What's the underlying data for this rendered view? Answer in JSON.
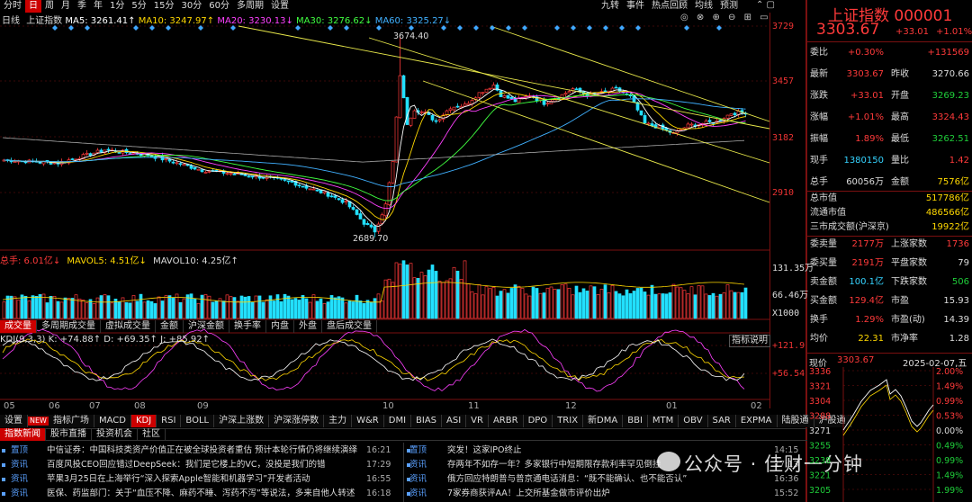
{
  "top_toolbar": {
    "items": [
      "分时",
      "日",
      "周",
      "月",
      "季",
      "年",
      "1分",
      "5分",
      "15分",
      "30分",
      "60分",
      "多周期",
      "设置"
    ],
    "selected": "日",
    "right_items": [
      "九转",
      "事件",
      "热点回顾",
      "均线",
      "预测"
    ]
  },
  "ma_bar": {
    "label": "日线",
    "index_name": "上证指数",
    "ma5": "MA5: 3261.41↑",
    "ma10": "MA10: 3247.97↑",
    "ma20": "MA20: 3230.13↓",
    "ma30": "MA30: 3276.62↓",
    "ma60": "MA60: 3325.27↓"
  },
  "colors": {
    "ma5": "#ffffff",
    "ma10": "#ffd800",
    "ma20": "#ff40ff",
    "ma30": "#40ff40",
    "ma60": "#40b0ff",
    "up": "#ff3a3a",
    "down": "#22e0ff",
    "trend": "#e8e84a"
  },
  "price_axis": [
    "3729",
    "3457",
    "3182",
    "2910"
  ],
  "price_annotations": {
    "high": "3674.40",
    "low": "2689.70"
  },
  "volume": {
    "header_total": "总手: 6.01亿↓",
    "mavol5": "MAVOL5: 4.51亿↓",
    "mavol10": "MAVOL10: 4.25亿↑",
    "axis_top": "131.35万",
    "axis_mid": "66.46万",
    "axis_unit": "X1000"
  },
  "mid_tabs": [
    "成交量",
    "多周期成交量",
    "虚拟成交量",
    "金额",
    "沪深金额",
    "换手率",
    "内盘",
    "外盘",
    "盘后成交量"
  ],
  "kdj": {
    "header": "KDJ(9,3,3) K: +74.88↑ D: +69.35↑ J: +85.92↑",
    "explain": "指标说明",
    "axis_top": "+121.9",
    "axis_mid": "+56.54"
  },
  "x_axis": [
    "05",
    "06",
    "07",
    "08",
    "09",
    "10",
    "11",
    "12",
    "01",
    "02"
  ],
  "indicator_tabs": [
    "设置",
    "指标广场",
    "MACD",
    "KDJ",
    "RSI",
    "BOLL",
    "沪深上涨数",
    "沪深涨停数",
    "主力",
    "W&R",
    "DMI",
    "BIAS",
    "ASI",
    "VR",
    "ARBR",
    "DPO",
    "TRIX",
    "新DMA",
    "BBI",
    "MTM",
    "OBV",
    "SAR",
    "EXPMA",
    "陆股通",
    "沪股通"
  ],
  "indicator_selected": "KDJ",
  "news_tabs": [
    "指数新闻",
    "股市直播",
    "投资机会",
    "社区"
  ],
  "news_left": [
    {
      "tag": "置顶",
      "text": "中信证券：中国科技类资产价值正在被全球投资者重估 预计本轮行情仍将继续演绎",
      "time": "16:21"
    },
    {
      "tag": "资讯",
      "text": "百度风投CEO回应错过DeepSeek：我们是它楼上的VC，没投是我们的错",
      "time": "17:29"
    },
    {
      "tag": "资讯",
      "text": "苹果3月25日在上海举行“深入探索Apple智能和机器学习”开发者活动",
      "time": "16:55"
    },
    {
      "tag": "资讯",
      "text": "医保、药监部门：关于“血压不降、麻药不睡、泻药不泻”等说法，多来自他人转述",
      "time": "16:18"
    }
  ],
  "news_right": [
    {
      "tag": "置顶",
      "text": "突发！这家IPO终止",
      "time": "14:15"
    },
    {
      "tag": "资讯",
      "text": "存两年不如存一年？多家银行中短期限存款利率罕见倒挂",
      "time": "17:13"
    },
    {
      "tag": "资讯",
      "text": "俄方回应特朗普与普京通电话消息：“既不能确认、也不能否认”",
      "time": "16:36"
    },
    {
      "tag": "资讯",
      "text": "7家券商获评AA！上交所基金做市评价出炉",
      "time": "15:52"
    }
  ],
  "watermark": "公众号 · 佳财一分钟",
  "quote": {
    "title": "上证指数 000001",
    "price": "3303.67",
    "change": "+33.01",
    "pct": "+1.01%",
    "rows": [
      {
        "l": "委比",
        "v": "+0.30%",
        "l2": "",
        "v2": "+131569",
        "c": "red",
        "c2": "red"
      },
      {
        "l": "最新",
        "v": "3303.67",
        "l2": "昨收",
        "v2": "3270.66",
        "c": "red",
        "c2": "wht"
      },
      {
        "l": "涨跌",
        "v": "+33.01",
        "l2": "开盘",
        "v2": "3269.23",
        "c": "red",
        "c2": "grn"
      },
      {
        "l": "涨幅",
        "v": "+1.01%",
        "l2": "最高",
        "v2": "3324.43",
        "c": "red",
        "c2": "red"
      },
      {
        "l": "振幅",
        "v": "1.89%",
        "l2": "最低",
        "v2": "3262.51",
        "c": "red",
        "c2": "grn"
      },
      {
        "l": "现手",
        "v": "1380150",
        "l2": "量比",
        "v2": "1.42",
        "c": "cy",
        "c2": "red"
      },
      {
        "l": "总手",
        "v": "60056万",
        "l2": "金额",
        "v2": "7576亿",
        "c": "wht",
        "c2": "yel"
      }
    ],
    "market": [
      {
        "l": "总市值",
        "v": "517786亿"
      },
      {
        "l": "流通市值",
        "v": "486566亿"
      },
      {
        "l": "三市成交额(沪深京)",
        "v": "19922亿"
      }
    ],
    "breadth": [
      {
        "l": "委卖量",
        "v": "2177万",
        "l2": "上涨家数",
        "v2": "1736",
        "c": "red",
        "c2": "red"
      },
      {
        "l": "委买量",
        "v": "2191万",
        "l2": "平盘家数",
        "v2": "79",
        "c": "red",
        "c2": "wht"
      },
      {
        "l": "卖金额",
        "v": "100.1亿",
        "l2": "下跌家数",
        "v2": "506",
        "c": "cy",
        "c2": "grn"
      },
      {
        "l": "买金额",
        "v": "129.4亿",
        "l2": "市盈",
        "v2": "15.93",
        "c": "red",
        "c2": "wht"
      },
      {
        "l": "换手",
        "v": "1.29%",
        "l2": "市盈(动)",
        "v2": "14.39",
        "c": "red",
        "c2": "wht"
      },
      {
        "l": "均价",
        "v": "22.31",
        "l2": "市净率",
        "v2": "1.28",
        "c": "yel",
        "c2": "wht"
      }
    ],
    "mini": {
      "label": "现价",
      "price": "3303.67",
      "date": "2025-02-07,五",
      "left_axis": [
        "3336",
        "3321",
        "3304",
        "3288",
        "3271",
        "3255",
        "3238",
        "3221",
        "3205"
      ],
      "right_axis": [
        "2.00%",
        "1.49%",
        "0.99%",
        "0.53%",
        "0.00%",
        "0.49%",
        "0.99%",
        "1.49%",
        "1.99%"
      ]
    }
  }
}
